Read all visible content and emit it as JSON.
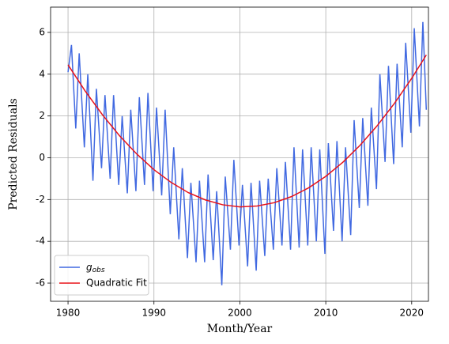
{
  "chart_data": {
    "type": "line",
    "xlabel": "Month/Year",
    "ylabel": "Predicted Residuals",
    "xlim": [
      1977.97,
      2021.95
    ],
    "xticks": [
      1980,
      1990,
      2000,
      2010,
      2020
    ],
    "ylim": [
      -6.87,
      7.21
    ],
    "yticks": [
      -6,
      -4,
      -2,
      0,
      2,
      4,
      6
    ],
    "grid": true,
    "legend": "lower left",
    "series": [
      {
        "name": "g_obs",
        "color": "#4169e1",
        "x": [
          1980.0,
          1980.4,
          1980.9,
          1981.3,
          1981.9,
          1982.3,
          1982.9,
          1983.3,
          1983.9,
          1984.3,
          1984.9,
          1985.3,
          1985.9,
          1986.3,
          1986.9,
          1987.3,
          1987.9,
          1988.3,
          1988.9,
          1989.3,
          1989.9,
          1990.3,
          1990.9,
          1991.3,
          1991.9,
          1992.3,
          1992.9,
          1993.3,
          1993.9,
          1994.3,
          1994.9,
          1995.3,
          1995.9,
          1996.3,
          1996.9,
          1997.3,
          1997.9,
          1998.3,
          1998.9,
          1999.3,
          1999.9,
          2000.3,
          2000.9,
          2001.3,
          2001.9,
          2002.3,
          2002.9,
          2003.3,
          2003.9,
          2004.3,
          2004.9,
          2005.3,
          2005.9,
          2006.3,
          2006.9,
          2007.3,
          2007.9,
          2008.3,
          2008.9,
          2009.3,
          2009.9,
          2010.3,
          2010.9,
          2011.3,
          2011.9,
          2012.3,
          2012.9,
          2013.3,
          2013.9,
          2014.3,
          2014.9,
          2015.3,
          2015.9,
          2016.3,
          2016.9,
          2017.3,
          2017.9,
          2018.3,
          2018.9,
          2019.3,
          2019.9,
          2020.3,
          2020.9,
          2021.3,
          2021.7
        ],
        "values": [
          4.1,
          5.4,
          1.4,
          5.0,
          0.5,
          4.0,
          -1.1,
          3.3,
          -0.5,
          3.0,
          -1.0,
          3.0,
          -1.3,
          2.0,
          -1.7,
          2.3,
          -1.6,
          2.9,
          -1.3,
          3.1,
          -1.6,
          2.4,
          -1.8,
          2.3,
          -2.7,
          0.5,
          -3.9,
          -0.5,
          -4.8,
          -1.2,
          -5.0,
          -1.1,
          -5.0,
          -0.8,
          -4.9,
          -1.6,
          -6.1,
          -0.9,
          -4.4,
          -0.1,
          -4.2,
          -1.3,
          -5.2,
          -1.2,
          -5.4,
          -1.1,
          -4.7,
          -1.0,
          -4.4,
          -0.5,
          -4.2,
          -0.2,
          -4.4,
          0.5,
          -4.3,
          0.4,
          -4.2,
          0.5,
          -4.0,
          0.4,
          -4.6,
          0.7,
          -3.5,
          0.8,
          -4.0,
          0.5,
          -3.7,
          1.8,
          -2.4,
          1.9,
          -2.3,
          2.4,
          -1.5,
          4.0,
          -0.2,
          4.4,
          -0.3,
          4.5,
          0.5,
          5.5,
          1.2,
          6.2,
          1.5,
          6.5,
          2.3
        ]
      },
      {
        "name": "Quadratic Fit",
        "color": "#e8131a",
        "x": [
          1980,
          1982,
          1984,
          1986,
          1988,
          1990,
          1992,
          1994,
          1996,
          1998,
          2000,
          2002,
          2004,
          2006,
          2008,
          2010,
          2012,
          2014,
          2016,
          2018,
          2020,
          2021.7
        ],
        "values": [
          4.45,
          3.19,
          2.06,
          1.05,
          0.18,
          -0.57,
          -1.18,
          -1.67,
          -2.02,
          -2.25,
          -2.35,
          -2.31,
          -2.15,
          -1.86,
          -1.44,
          -0.89,
          -0.21,
          0.6,
          1.54,
          2.61,
          3.8,
          4.92
        ]
      }
    ]
  }
}
